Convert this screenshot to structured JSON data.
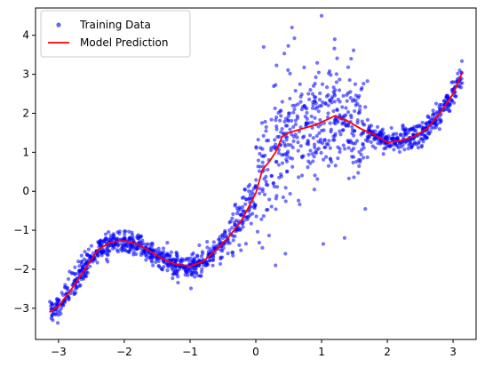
{
  "chart_data": {
    "type": "scatter",
    "title": "",
    "xlabel": "",
    "ylabel": "",
    "xlim": [
      -3.35,
      3.35
    ],
    "ylim": [
      -3.8,
      4.7
    ],
    "xticks": [
      -3,
      -2,
      -1,
      0,
      1,
      2,
      3
    ],
    "yticks": [
      -3,
      -2,
      -1,
      0,
      1,
      2,
      3,
      4
    ],
    "grid": false,
    "legend_position": "top-left",
    "colors": {
      "scatter": "#0000ff",
      "line": "#ff0000"
    },
    "series": [
      {
        "name": "Training Data",
        "kind": "scatter",
        "point_count": 1500,
        "color": "#0000ff",
        "x": [
          -3.1,
          -3.05,
          -3.0,
          -2.95,
          -2.9,
          -2.85,
          -2.8,
          -2.75,
          -2.7,
          -2.65,
          -2.6,
          -2.5,
          -2.4,
          -2.3,
          -2.2,
          -2.1,
          -2.0,
          -1.9,
          -1.8,
          -1.7,
          -1.6,
          -1.5,
          -1.4,
          -1.3,
          -1.2,
          -1.1,
          -1.0,
          -0.9,
          -0.8,
          -0.7,
          -0.6,
          -0.5,
          -0.4,
          -0.3,
          -0.2,
          -0.1,
          0.0,
          0.1,
          0.2,
          0.3,
          0.4,
          0.5,
          0.6,
          0.7,
          0.8,
          0.9,
          1.0,
          1.1,
          1.2,
          1.3,
          1.4,
          1.5,
          1.6,
          1.7,
          1.8,
          1.9,
          2.0,
          2.1,
          2.2,
          2.3,
          2.4,
          2.5,
          2.6,
          2.7,
          2.8,
          2.9,
          3.0,
          3.1,
          0.12,
          0.3,
          0.55,
          1.0,
          1.2,
          1.45,
          0.45,
          0.1
        ],
        "y": [
          -3.2,
          -3.0,
          -2.8,
          -2.6,
          -2.4,
          -2.25,
          -2.1,
          -1.95,
          -1.8,
          -1.65,
          -1.55,
          -1.4,
          -1.3,
          -1.25,
          -1.2,
          -1.22,
          -1.25,
          -1.35,
          -1.45,
          -1.55,
          -1.65,
          -1.75,
          -1.8,
          -1.85,
          -1.9,
          -1.92,
          -1.9,
          -1.85,
          -1.75,
          -1.6,
          -1.4,
          -1.2,
          -1.0,
          -0.75,
          -0.5,
          -0.2,
          0.1,
          0.5,
          0.8,
          1.2,
          1.6,
          2.0,
          2.2,
          2.1,
          2.5,
          2.3,
          2.2,
          2.0,
          2.3,
          1.9,
          1.7,
          1.55,
          1.45,
          1.4,
          1.35,
          1.3,
          1.25,
          1.2,
          1.25,
          1.3,
          1.35,
          1.45,
          1.6,
          1.85,
          2.1,
          2.45,
          2.8,
          3.1,
          3.7,
          -1.9,
          4.2,
          4.5,
          3.9,
          3.4,
          -1.6,
          -1.45
        ]
      },
      {
        "name": "Model Prediction",
        "kind": "line",
        "color": "#ff0000",
        "x": [
          -3.14,
          -3.0,
          -2.8,
          -2.6,
          -2.4,
          -2.2,
          -2.0,
          -1.8,
          -1.6,
          -1.4,
          -1.2,
          -1.0,
          -0.8,
          -0.6,
          -0.4,
          -0.2,
          0.0,
          0.1,
          0.2,
          0.3,
          0.4,
          0.5,
          0.7,
          0.9,
          1.1,
          1.2,
          1.4,
          1.6,
          1.8,
          2.0,
          2.2,
          2.4,
          2.6,
          2.8,
          3.0,
          3.14
        ],
        "y": [
          -3.1,
          -2.95,
          -2.5,
          -2.0,
          -1.5,
          -1.3,
          -1.27,
          -1.35,
          -1.55,
          -1.75,
          -1.88,
          -1.92,
          -1.8,
          -1.5,
          -1.15,
          -0.7,
          -0.05,
          0.55,
          0.75,
          1.0,
          1.4,
          1.5,
          1.6,
          1.7,
          1.85,
          1.93,
          1.8,
          1.6,
          1.45,
          1.25,
          1.3,
          1.4,
          1.6,
          2.0,
          2.5,
          3.05
        ]
      }
    ]
  }
}
